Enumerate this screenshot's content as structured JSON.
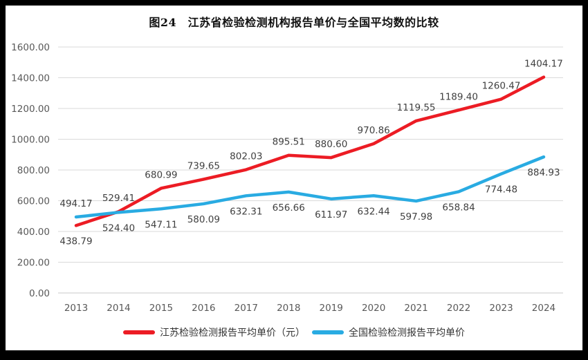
{
  "chart_data": {
    "type": "line",
    "title": "图24　江苏省检验检测机构报告单价与全国平均数的比较",
    "categories": [
      "2013",
      "2014",
      "2015",
      "2016",
      "2017",
      "2018",
      "2019",
      "2020",
      "2021",
      "2022",
      "2023",
      "2024"
    ],
    "series": [
      {
        "name": "江苏检验检测报告平均单价（元）",
        "color": "#ec1c24",
        "values": [
          438.79,
          529.41,
          680.99,
          739.65,
          802.03,
          895.51,
          880.6,
          970.86,
          1119.55,
          1189.4,
          1260.47,
          1404.17
        ],
        "label_side_default": "above",
        "label_side_overrides": {
          "0": "below"
        }
      },
      {
        "name": "全国检验检测报告平均单价",
        "color": "#29abe2",
        "values": [
          494.17,
          524.4,
          547.11,
          580.09,
          632.31,
          656.66,
          611.97,
          632.44,
          597.98,
          658.84,
          774.48,
          884.93
        ],
        "label_side_default": "below",
        "label_side_overrides": {
          "0": "above"
        }
      }
    ],
    "ylim": [
      0,
      1600
    ],
    "ytick_step": 200,
    "tick_decimals": 2,
    "grid": true,
    "legend_position": "bottom"
  },
  "frame": {
    "background": "#000000",
    "chart_background": "#ffffff",
    "gridline_color": "#d9d9d9"
  }
}
